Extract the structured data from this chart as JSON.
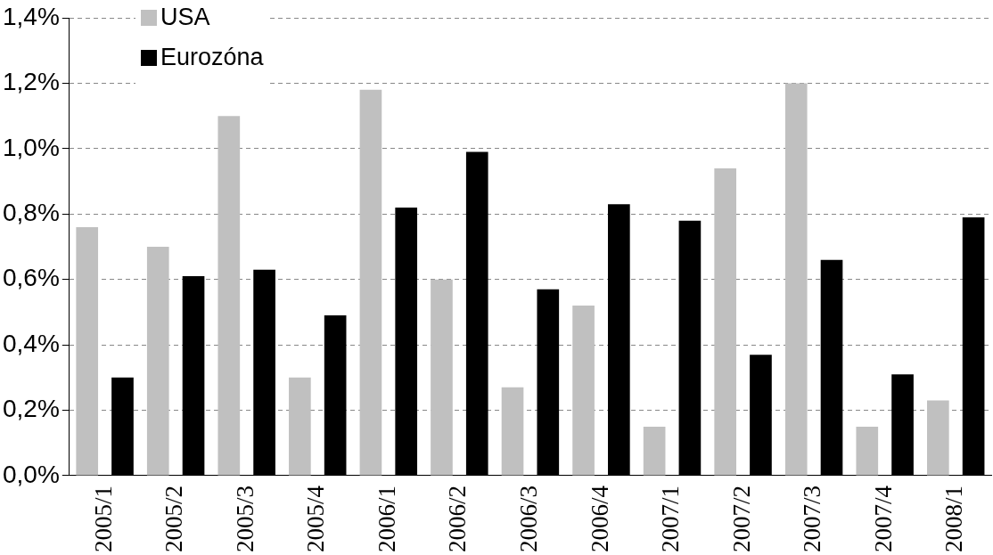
{
  "chart_data": {
    "type": "bar",
    "categories": [
      "2005/1",
      "2005/2",
      "2005/3",
      "2005/4",
      "2006/1",
      "2006/2",
      "2006/3",
      "2006/4",
      "2007/1",
      "2007/2",
      "2007/3",
      "2007/4",
      "2008/1"
    ],
    "series": [
      {
        "name": "USA",
        "color": "#c0c0c0",
        "values": [
          0.76,
          0.7,
          1.1,
          0.3,
          1.18,
          0.6,
          0.27,
          0.52,
          0.15,
          0.94,
          1.2,
          0.15,
          0.23
        ]
      },
      {
        "name": "Eurozóna",
        "color": "#000000",
        "values": [
          0.3,
          0.61,
          0.63,
          0.49,
          0.82,
          0.99,
          0.57,
          0.83,
          0.78,
          0.37,
          0.66,
          0.31,
          0.79
        ]
      }
    ],
    "ylim": [
      0,
      1.4
    ],
    "yticks": [
      {
        "value": 0,
        "label": "0,0%"
      },
      {
        "value": 0.2,
        "label": "0,2%"
      },
      {
        "value": 0.4,
        "label": "0,4%"
      },
      {
        "value": 0.6,
        "label": "0,6%"
      },
      {
        "value": 0.8,
        "label": "0,8%"
      },
      {
        "value": 1.0,
        "label": "1,0%"
      },
      {
        "value": 1.2,
        "label": "1,2%"
      },
      {
        "value": 1.4,
        "label": "1,4%"
      }
    ],
    "grid": "y",
    "legend": "top left"
  }
}
